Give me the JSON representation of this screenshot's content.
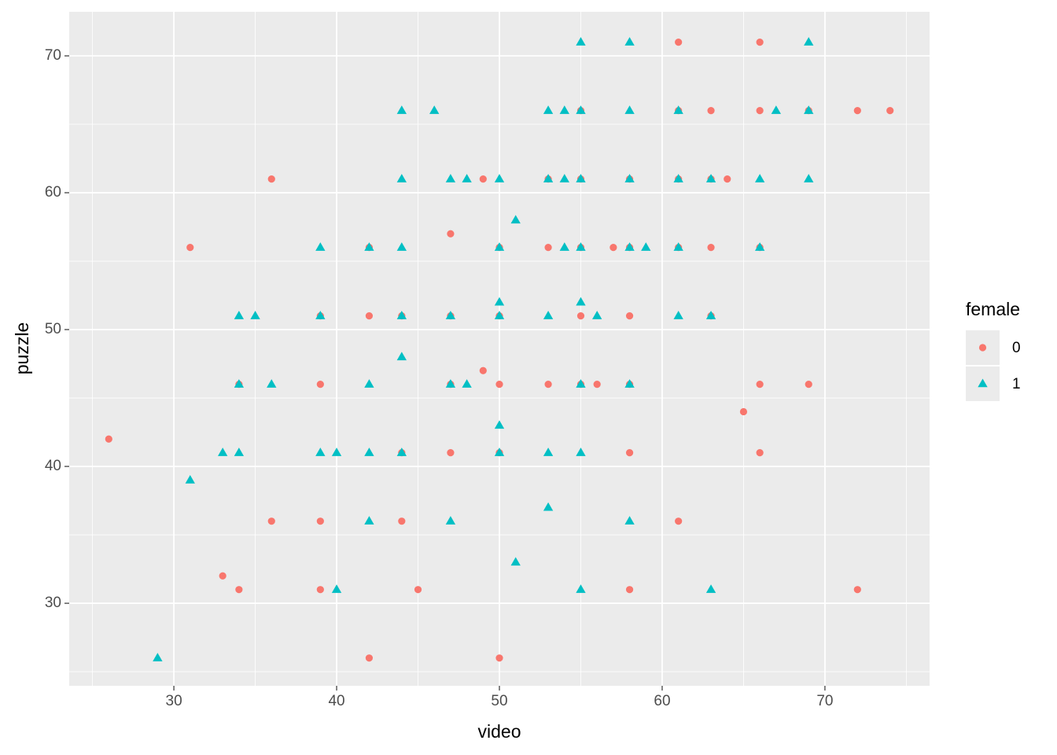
{
  "chart_data": {
    "type": "scatter",
    "x_label": "video",
    "y_label": "puzzle",
    "legend_title": "female",
    "legend_position": "right",
    "xlim": [
      23.57,
      76.43
    ],
    "ylim": [
      23.97,
      73.22
    ],
    "xticks": [
      30,
      40,
      50,
      60,
      70
    ],
    "yticks": [
      30,
      40,
      50,
      60,
      70
    ],
    "grid": true,
    "series": [
      {
        "name": "0",
        "color": "#F8766D",
        "marker": "circle",
        "x": [
          61,
          66,
          55,
          61,
          63,
          66,
          69,
          72,
          74,
          36,
          49,
          53,
          55,
          58,
          61,
          63,
          64,
          47,
          31,
          42,
          50,
          53,
          55,
          57,
          58,
          61,
          63,
          66,
          39,
          42,
          44,
          47,
          50,
          55,
          58,
          63,
          49,
          34,
          39,
          47,
          50,
          53,
          55,
          56,
          58,
          66,
          69,
          65,
          26,
          44,
          47,
          50,
          58,
          66,
          36,
          39,
          44,
          61,
          33,
          34,
          39,
          45,
          58,
          72,
          42,
          50
        ],
        "values": [
          71,
          71,
          66,
          66,
          66,
          66,
          66,
          66,
          66,
          61,
          61,
          61,
          61,
          61,
          61,
          61,
          61,
          57,
          56,
          56,
          56,
          56,
          56,
          56,
          56,
          56,
          56,
          56,
          51,
          51,
          51,
          51,
          51,
          51,
          51,
          51,
          47,
          46,
          46,
          46,
          46,
          46,
          46,
          46,
          46,
          46,
          46,
          44,
          42,
          41,
          41,
          41,
          41,
          41,
          36,
          36,
          36,
          36,
          32,
          31,
          31,
          31,
          31,
          31,
          26,
          26
        ]
      },
      {
        "name": "1",
        "color": "#00BFC4",
        "marker": "triangle",
        "x": [
          55,
          58,
          69,
          44,
          46,
          53,
          54,
          55,
          58,
          61,
          67,
          69,
          44,
          47,
          48,
          50,
          53,
          54,
          55,
          58,
          61,
          63,
          66,
          69,
          51,
          39,
          42,
          44,
          50,
          54,
          55,
          58,
          59,
          61,
          66,
          50,
          55,
          34,
          35,
          39,
          44,
          47,
          50,
          53,
          56,
          61,
          63,
          44,
          34,
          36,
          42,
          47,
          48,
          55,
          58,
          50,
          33,
          34,
          39,
          40,
          42,
          44,
          50,
          53,
          55,
          31,
          53,
          42,
          47,
          58,
          51,
          40,
          55,
          63,
          29
        ],
        "values": [
          71,
          71,
          71,
          66,
          66,
          66,
          66,
          66,
          66,
          66,
          66,
          66,
          61,
          61,
          61,
          61,
          61,
          61,
          61,
          61,
          61,
          61,
          61,
          61,
          58,
          56,
          56,
          56,
          56,
          56,
          56,
          56,
          56,
          56,
          56,
          52,
          52,
          51,
          51,
          51,
          51,
          51,
          51,
          51,
          51,
          51,
          51,
          48,
          46,
          46,
          46,
          46,
          46,
          46,
          46,
          43,
          41,
          41,
          41,
          41,
          41,
          41,
          41,
          41,
          41,
          39,
          37,
          36,
          36,
          36,
          33,
          31,
          31,
          31,
          26
        ]
      }
    ]
  }
}
